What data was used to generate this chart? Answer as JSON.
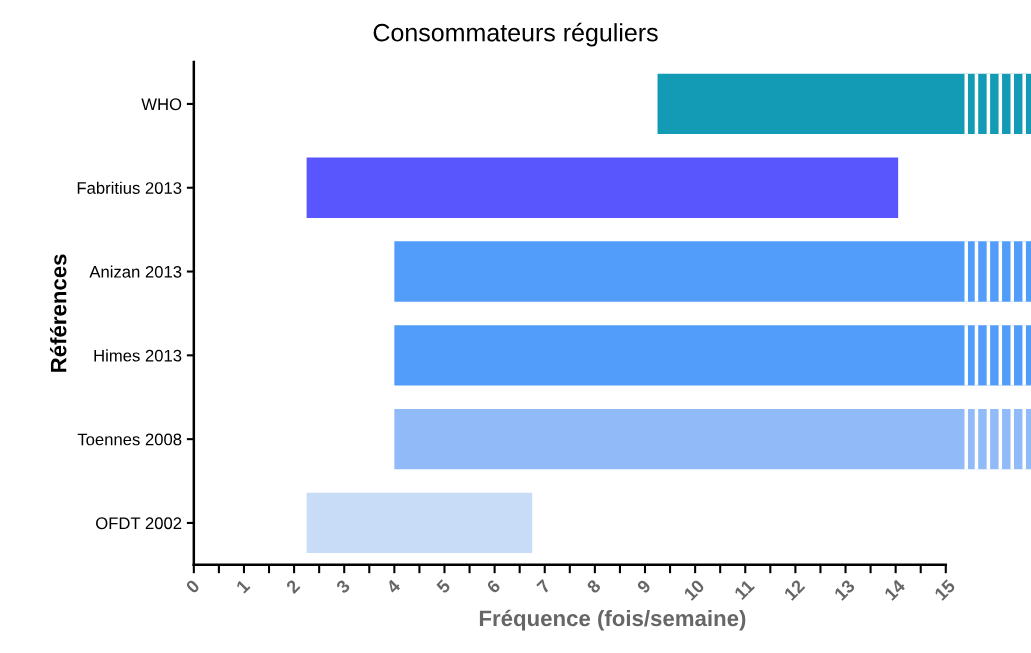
{
  "chart_data": {
    "type": "bar",
    "orientation": "horizontal",
    "title": "Consommateurs réguliers",
    "xlabel": "Fréquence (fois/semaine)",
    "ylabel": "Références",
    "categories": [
      "WHO",
      "Fabritius 2013",
      "Anizan 2013",
      "Himes 2013",
      "Toennes 2008",
      "OFDT 2002"
    ],
    "base": [
      9.25,
      2.25,
      4,
      4,
      4,
      2.25
    ],
    "values": [
      7.45,
      11.8,
      12.7,
      12.7,
      12.7,
      4.5
    ],
    "colors": [
      "#139ab5",
      "#5856fc",
      "#529dfa",
      "#529dfa",
      "#90bbf8",
      "#c8dcf8"
    ],
    "xlim": [
      0,
      16.7
    ],
    "xticks": [
      0,
      {
        "value": 0.5,
        "label": null
      },
      1,
      {
        "value": 1.5,
        "label": null
      },
      2,
      {
        "value": 2.5,
        "label": null
      },
      3,
      {
        "value": 3.5,
        "label": null
      },
      4,
      {
        "value": 4.5,
        "label": null
      },
      5,
      {
        "value": 5.5,
        "label": null
      },
      6,
      {
        "value": 6.5,
        "label": null
      },
      7,
      {
        "value": 7.5,
        "label": null
      },
      8,
      {
        "value": 8.5,
        "label": null
      },
      9,
      {
        "value": 9.5,
        "label": null
      },
      10,
      {
        "value": 10.5,
        "label": null
      },
      11,
      {
        "value": 11.5,
        "label": null
      },
      12,
      {
        "value": 12.5,
        "label": null
      },
      13,
      {
        "value": 13.5,
        "label": null
      },
      14,
      {
        "value": 14.5,
        "label": null
      },
      15
    ],
    "grid": false
  }
}
